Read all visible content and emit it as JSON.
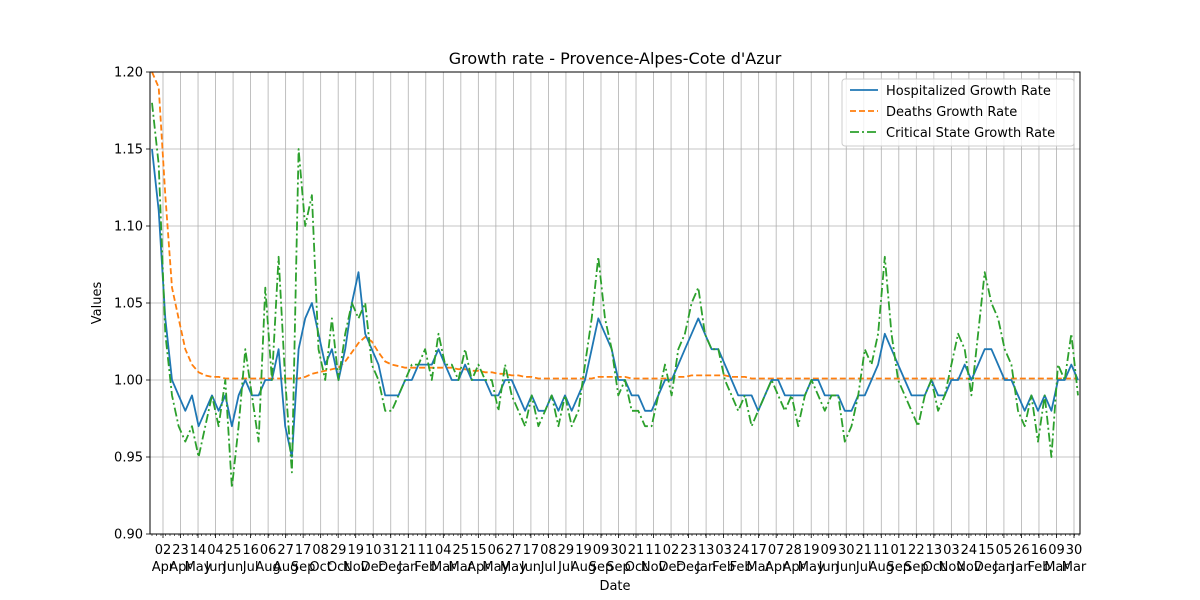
{
  "chart_data": {
    "type": "line",
    "title": "Growth rate - Provence-Alpes-Cote d'Azur",
    "xlabel": "Date",
    "ylabel": "Values",
    "ylim": [
      0.9,
      1.2
    ],
    "grid": true,
    "legend_position": "top-right",
    "yticks": [
      "0.90",
      "0.95",
      "1.00",
      "1.05",
      "1.10",
      "1.15",
      "1.20"
    ],
    "xtick_days": [
      "02",
      "23",
      "14",
      "04",
      "25",
      "16",
      "06",
      "27",
      "17",
      "08",
      "29",
      "19",
      "10",
      "31",
      "21",
      "11",
      "04",
      "25",
      "15",
      "06",
      "27",
      "17",
      "08",
      "29",
      "19",
      "09",
      "30",
      "21",
      "11",
      "02",
      "23",
      "13",
      "03",
      "24",
      "17",
      "07",
      "28",
      "19",
      "09",
      "30",
      "21",
      "11",
      "01",
      "22",
      "13",
      "03",
      "24",
      "15",
      "05",
      "26",
      "16",
      "09",
      "30"
    ],
    "xtick_months": [
      "Apr",
      "Apr",
      "May",
      "Jun",
      "Jun",
      "Jul",
      "Aug",
      "Aug",
      "Sep",
      "Oct",
      "Oct",
      "Nov",
      "Dec",
      "Dec",
      "Jan",
      "Feb",
      "Mar",
      "Mar",
      "Apr",
      "May",
      "May",
      "Jun",
      "Jul",
      "Jul",
      "Aug",
      "Sep",
      "Sep",
      "Oct",
      "Nov",
      "Dec",
      "Dec",
      "Jan",
      "Feb",
      "Feb",
      "Mar",
      "Apr",
      "Apr",
      "May",
      "Jun",
      "Jun",
      "Jul",
      "Aug",
      "Sep",
      "Sep",
      "Oct",
      "Nov",
      "Nov",
      "Dec",
      "Jan",
      "Jan",
      "Feb",
      "Mar",
      "Mar"
    ],
    "series": [
      {
        "name": "Hospitalized Growth Rate",
        "color": "#1f77b4",
        "style": "solid",
        "values": [
          1.15,
          1.11,
          1.04,
          1.0,
          0.99,
          0.98,
          0.99,
          0.97,
          0.98,
          0.99,
          0.98,
          0.99,
          0.97,
          0.99,
          1.0,
          0.99,
          0.99,
          1.0,
          1.0,
          1.02,
          0.97,
          0.95,
          1.02,
          1.04,
          1.05,
          1.03,
          1.01,
          1.02,
          1.0,
          1.02,
          1.05,
          1.07,
          1.03,
          1.02,
          1.01,
          0.99,
          0.99,
          0.99,
          1.0,
          1.0,
          1.01,
          1.01,
          1.01,
          1.02,
          1.01,
          1.0,
          1.0,
          1.01,
          1.0,
          1.0,
          1.0,
          0.99,
          0.99,
          1.0,
          1.0,
          0.99,
          0.98,
          0.99,
          0.98,
          0.98,
          0.99,
          0.98,
          0.99,
          0.98,
          0.99,
          1.0,
          1.02,
          1.04,
          1.03,
          1.02,
          1.0,
          1.0,
          0.99,
          0.99,
          0.98,
          0.98,
          0.99,
          1.0,
          1.0,
          1.01,
          1.02,
          1.03,
          1.04,
          1.03,
          1.02,
          1.02,
          1.01,
          1.0,
          0.99,
          0.99,
          0.99,
          0.98,
          0.99,
          1.0,
          1.0,
          0.99,
          0.99,
          0.99,
          0.99,
          1.0,
          1.0,
          0.99,
          0.99,
          0.99,
          0.98,
          0.98,
          0.99,
          0.99,
          1.0,
          1.01,
          1.03,
          1.02,
          1.01,
          1.0,
          0.99,
          0.99,
          0.99,
          1.0,
          0.99,
          0.99,
          1.0,
          1.0,
          1.01,
          1.0,
          1.01,
          1.02,
          1.02,
          1.01,
          1.0,
          1.0,
          0.99,
          0.98,
          0.99,
          0.98,
          0.99,
          0.98,
          1.0,
          1.0,
          1.01,
          1.0
        ]
      },
      {
        "name": "Deaths Growth Rate",
        "color": "#ff7f0e",
        "style": "dashed",
        "values": [
          1.2,
          1.19,
          1.12,
          1.06,
          1.04,
          1.02,
          1.01,
          1.005,
          1.003,
          1.002,
          1.002,
          1.001,
          1.001,
          1.001,
          1.001,
          1.001,
          1.001,
          1.001,
          1.001,
          1.001,
          1.001,
          1.001,
          1.001,
          1.002,
          1.004,
          1.005,
          1.006,
          1.007,
          1.008,
          1.012,
          1.018,
          1.024,
          1.028,
          1.025,
          1.018,
          1.012,
          1.01,
          1.009,
          1.008,
          1.008,
          1.008,
          1.008,
          1.008,
          1.008,
          1.008,
          1.008,
          1.007,
          1.007,
          1.006,
          1.006,
          1.005,
          1.005,
          1.004,
          1.004,
          1.003,
          1.003,
          1.002,
          1.002,
          1.001,
          1.001,
          1.001,
          1.001,
          1.001,
          1.001,
          1.001,
          1.001,
          1.001,
          1.002,
          1.002,
          1.002,
          1.002,
          1.002,
          1.001,
          1.001,
          1.001,
          1.001,
          1.001,
          1.001,
          1.001,
          1.002,
          1.002,
          1.003,
          1.003,
          1.003,
          1.003,
          1.003,
          1.003,
          1.002,
          1.002,
          1.002,
          1.001,
          1.001,
          1.001,
          1.001,
          1.001,
          1.001,
          1.001,
          1.001,
          1.001,
          1.001,
          1.001,
          1.001,
          1.001,
          1.001,
          1.001,
          1.001,
          1.001,
          1.001,
          1.001,
          1.001,
          1.001,
          1.001,
          1.001,
          1.001,
          1.001,
          1.001,
          1.001,
          1.001,
          1.001,
          1.001,
          1.001,
          1.001,
          1.001,
          1.001,
          1.001,
          1.001,
          1.001,
          1.001,
          1.001,
          1.001,
          1.001,
          1.001,
          1.001,
          1.001,
          1.001,
          1.001,
          1.001,
          1.001,
          1.001,
          1.001
        ]
      },
      {
        "name": "Critical State Growth Rate",
        "color": "#2ca02c",
        "style": "dashdot",
        "values": [
          1.18,
          1.14,
          1.03,
          0.99,
          0.97,
          0.96,
          0.97,
          0.95,
          0.97,
          0.99,
          0.97,
          1.0,
          0.93,
          0.97,
          1.02,
          0.99,
          0.96,
          1.06,
          1.0,
          1.08,
          1.0,
          0.94,
          1.15,
          1.1,
          1.12,
          1.02,
          1.0,
          1.04,
          1.0,
          1.03,
          1.05,
          1.04,
          1.05,
          1.01,
          1.0,
          0.98,
          0.98,
          0.99,
          1.0,
          1.01,
          1.01,
          1.02,
          1.0,
          1.03,
          1.01,
          1.01,
          1.0,
          1.02,
          1.0,
          1.01,
          1.0,
          1.0,
          0.98,
          1.01,
          0.99,
          0.98,
          0.97,
          0.99,
          0.97,
          0.98,
          0.99,
          0.97,
          0.99,
          0.97,
          0.98,
          1.01,
          1.04,
          1.08,
          1.04,
          1.02,
          0.99,
          1.0,
          0.98,
          0.98,
          0.97,
          0.97,
          0.99,
          1.01,
          0.99,
          1.02,
          1.03,
          1.05,
          1.06,
          1.03,
          1.02,
          1.02,
          1.0,
          0.99,
          0.98,
          0.99,
          0.97,
          0.98,
          0.99,
          1.0,
          0.99,
          0.98,
          0.99,
          0.97,
          0.99,
          1.0,
          0.99,
          0.98,
          0.99,
          0.99,
          0.96,
          0.97,
          0.99,
          1.02,
          1.01,
          1.03,
          1.08,
          1.03,
          1.0,
          0.99,
          0.98,
          0.97,
          0.99,
          1.0,
          0.98,
          0.99,
          1.01,
          1.03,
          1.02,
          0.99,
          1.03,
          1.07,
          1.05,
          1.04,
          1.02,
          1.01,
          0.98,
          0.97,
          0.99,
          0.96,
          0.99,
          0.95,
          1.01,
          1.0,
          1.03,
          0.99
        ]
      }
    ]
  }
}
